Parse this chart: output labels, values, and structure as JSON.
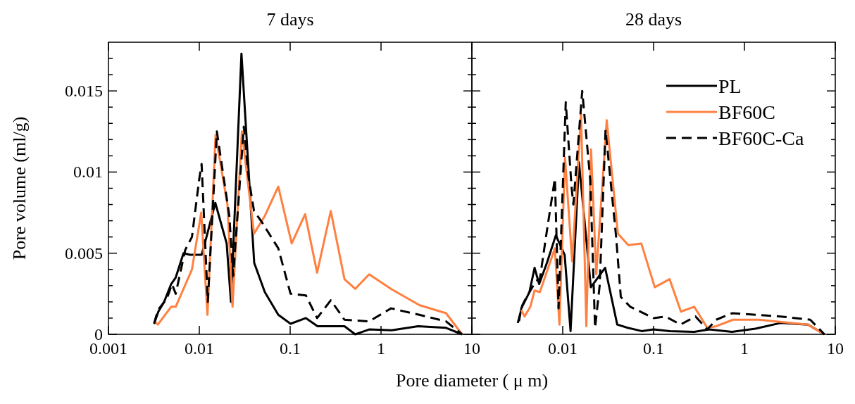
{
  "chart_data": [
    {
      "type": "line",
      "title": "7 days",
      "xlabel": "Pore diameter ( μ m)",
      "ylabel": "Pore volume (ml/g)",
      "log": "x",
      "xlim": [
        0.001,
        10
      ],
      "xticks": [
        0.001,
        0.01,
        0.1,
        1,
        10
      ],
      "ylim": [
        0,
        0.018
      ],
      "yticks": [
        0,
        {
          "value": 0.001,
          "label": null
        },
        {
          "value": 0.002,
          "label": null
        },
        {
          "value": 0.003,
          "label": null
        },
        {
          "value": 0.004,
          "label": null
        },
        0.005,
        {
          "value": 0.006,
          "label": null
        },
        {
          "value": 0.007,
          "label": null
        },
        {
          "value": 0.008,
          "label": null
        },
        {
          "value": 0.009,
          "label": null
        },
        0.01,
        {
          "value": 0.011,
          "label": null
        },
        {
          "value": 0.012,
          "label": null
        },
        {
          "value": 0.013,
          "label": null
        },
        {
          "value": 0.014,
          "label": null
        },
        0.015,
        {
          "value": 0.016,
          "label": null
        },
        {
          "value": 0.017,
          "label": null
        }
      ],
      "grid": false,
      "legend": false,
      "series": [
        {
          "color": "#000000",
          "line_style": "solid",
          "x": [
            0.00318,
            0.00354,
            0.0041,
            0.0049,
            0.0055,
            0.0067,
            0.0079,
            0.0106,
            0.012,
            0.015,
            0.02,
            0.0223,
            0.0291,
            0.0402,
            0.0526,
            0.074,
            0.101,
            0.149,
            0.2,
            0.396,
            0.52,
            0.74,
            1.31,
            2.56,
            5.2,
            7.8
          ],
          "values": [
            0.00065,
            0.0014,
            0.002,
            0.0031,
            0.0035,
            0.005,
            0.0049,
            0.0049,
            0.006,
            0.0081,
            0.0056,
            0.002,
            0.0173,
            0.0044,
            0.0026,
            0.0012,
            0.00065,
            0.001,
            0.0005,
            0.0005,
            0,
            0.0003,
            0.00025,
            0.0005,
            0.0004,
            0
          ]
        },
        {
          "color": "#ff8040",
          "line_style": "solid",
          "x": [
            0.00318,
            0.0035,
            0.0042,
            0.0049,
            0.0055,
            0.0083,
            0.0105,
            0.0123,
            0.0151,
            0.0204,
            0.0232,
            0.0294,
            0.04,
            0.0526,
            0.074,
            0.104,
            0.146,
            0.198,
            0.28,
            0.396,
            0.52,
            0.74,
            1.29,
            2.64,
            5.2,
            7.8
          ],
          "values": [
            0.0008,
            0.0006,
            0.0012,
            0.0017,
            0.0017,
            0.004,
            0.0075,
            0.0012,
            0.0123,
            0.008,
            0.0017,
            0.0125,
            0.0062,
            0.0073,
            0.0091,
            0.0056,
            0.0074,
            0.0038,
            0.0076,
            0.0034,
            0.0028,
            0.0037,
            0.0028,
            0.0018,
            0.0013,
            0
          ]
        },
        {
          "color": "#000000",
          "line_style": "dashed",
          "x": [
            0.00318,
            0.0035,
            0.0044,
            0.005,
            0.0055,
            0.007,
            0.0083,
            0.01,
            0.0106,
            0.0124,
            0.0156,
            0.0186,
            0.0214,
            0.0236,
            0.0309,
            0.035,
            0.04,
            0.049,
            0.074,
            0.101,
            0.149,
            0.198,
            0.28,
            0.396,
            0.74,
            1.29,
            2.64,
            5.2,
            7.8
          ],
          "values": [
            0.00065,
            0.0015,
            0.0022,
            0.0031,
            0.0025,
            0.0052,
            0.006,
            0.0096,
            0.0105,
            0.002,
            0.0125,
            0.0096,
            0.0073,
            0.0036,
            0.0128,
            0.0096,
            0.0076,
            0.0069,
            0.0053,
            0.0025,
            0.0024,
            0.001,
            0.0021,
            0.0009,
            0.0008,
            0.0016,
            0.0012,
            0.0008,
            0
          ]
        }
      ]
    },
    {
      "type": "line",
      "title": "28 days",
      "log": "x",
      "xlim": [
        0.001,
        10
      ],
      "xticks": [
        {
          "value": 0.001,
          "label": null
        },
        0.01,
        0.1,
        1,
        10
      ],
      "ylim": [
        0,
        0.018
      ],
      "yticks": [
        {
          "value": 0,
          "label": null
        },
        {
          "value": 0.001,
          "label": null
        },
        {
          "value": 0.002,
          "label": null
        },
        {
          "value": 0.003,
          "label": null
        },
        {
          "value": 0.004,
          "label": null
        },
        {
          "value": 0.005,
          "label": null
        },
        {
          "value": 0.006,
          "label": null
        },
        {
          "value": 0.007,
          "label": null
        },
        {
          "value": 0.008,
          "label": null
        },
        {
          "value": 0.009,
          "label": null
        },
        {
          "value": 0.01,
          "label": null
        },
        {
          "value": 0.011,
          "label": null
        },
        {
          "value": 0.012,
          "label": null
        },
        {
          "value": 0.013,
          "label": null
        },
        {
          "value": 0.014,
          "label": null
        },
        {
          "value": 0.015,
          "label": null
        },
        {
          "value": 0.016,
          "label": null
        },
        {
          "value": 0.017,
          "label": null
        }
      ],
      "tick_labels": "x",
      "grid": false,
      "legend": "top right",
      "series": [
        {
          "name": "PL",
          "color": "#000000",
          "line_style": "solid",
          "x": [
            0.0033,
            0.0035,
            0.0043,
            0.0049,
            0.0055,
            0.0067,
            0.0084,
            0.0105,
            0.0122,
            0.0151,
            0.0204,
            0.0293,
            0.0398,
            0.052,
            0.074,
            0.1,
            0.151,
            0.28,
            0.41,
            0.73,
            1.32,
            2.5,
            5.0,
            7.6
          ],
          "values": [
            0.0008,
            0.0016,
            0.0026,
            0.0041,
            0.0031,
            0.0044,
            0.0061,
            0.0049,
            0.0002,
            0.0106,
            0.0029,
            0.0041,
            0.0006,
            0.0004,
            0.0002,
            0.0003,
            0.0002,
            0.00015,
            0.0003,
            0.00015,
            0.00035,
            0.0007,
            0.0006,
            0
          ]
        },
        {
          "name": "BF60C",
          "color": "#ff8040",
          "line_style": "solid",
          "x": [
            0.0035,
            0.0038,
            0.0044,
            0.0049,
            0.0056,
            0.0082,
            0.0092,
            0.0106,
            0.0127,
            0.0159,
            0.0182,
            0.0205,
            0.0234,
            0.0305,
            0.0405,
            0.0527,
            0.0733,
            0.103,
            0.15,
            0.2,
            0.28,
            0.39,
            0.49,
            0.75,
            1.44,
            5.0,
            7.6
          ],
          "values": [
            0.0015,
            0.0011,
            0.0017,
            0.0027,
            0.0026,
            0.0053,
            0.0006,
            0.0109,
            0.0045,
            0.0136,
            0.0005,
            0.0114,
            0.0037,
            0.0132,
            0.0062,
            0.0055,
            0.0056,
            0.0029,
            0.0034,
            0.0014,
            0.0017,
            0.0004,
            0.0005,
            0.0009,
            0.0009,
            0.0006,
            0
          ]
        },
        {
          "name": "BF60C-Ca",
          "color": "#000000",
          "line_style": "dashed",
          "x": [
            0.0032,
            0.0036,
            0.004,
            0.0051,
            0.0056,
            0.0065,
            0.0082,
            0.009,
            0.0108,
            0.0125,
            0.0131,
            0.0164,
            0.0201,
            0.0227,
            0.0255,
            0.0296,
            0.0387,
            0.0436,
            0.0553,
            0.1,
            0.135,
            0.198,
            0.29,
            0.39,
            0.49,
            0.73,
            2.5,
            5.3,
            7.6
          ],
          "values": [
            0.0007,
            0.0018,
            0.0023,
            0.0033,
            0.0034,
            0.0059,
            0.0096,
            0.0016,
            0.0143,
            0.0091,
            0.008,
            0.015,
            0.0095,
            0.0004,
            0.003,
            0.0126,
            0.006,
            0.0023,
            0.0017,
            0.001,
            0.0011,
            0.0006,
            0.0011,
            0.0003,
            0.0009,
            0.0013,
            0.0011,
            0.0009,
            0
          ]
        }
      ]
    }
  ]
}
